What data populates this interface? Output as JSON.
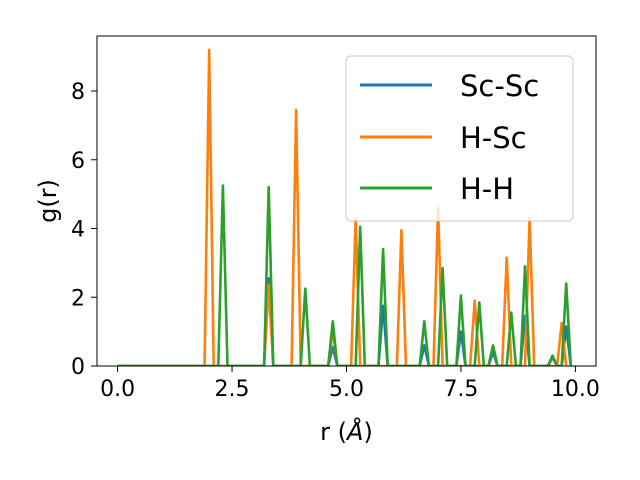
{
  "chart_data": {
    "type": "line",
    "xlabel": "r (",
    "xlabel_unit": "Å",
    "xlabel_close": ")",
    "ylabel": "g(r)",
    "xlim": [
      -0.45,
      10.45
    ],
    "ylim": [
      0,
      9.6
    ],
    "xticks": [
      0.0,
      2.5,
      5.0,
      7.5,
      10.0
    ],
    "xtick_labels": [
      "0.0",
      "2.5",
      "5.0",
      "7.5",
      "10.0"
    ],
    "yticks": [
      0,
      2,
      4,
      6,
      8
    ],
    "ytick_labels": [
      "0",
      "2",
      "4",
      "6",
      "8"
    ],
    "legend_position": "upper-right",
    "grid": false,
    "series": [
      {
        "name": "Sc-Sc",
        "color": "#1f77b4",
        "points": [
          [
            0,
            0
          ],
          [
            3.2,
            0
          ],
          [
            3.3,
            2.55
          ],
          [
            3.4,
            0
          ],
          [
            4.6,
            0
          ],
          [
            4.7,
            0.55
          ],
          [
            4.8,
            0
          ],
          [
            5.7,
            0
          ],
          [
            5.8,
            1.75
          ],
          [
            5.9,
            0
          ],
          [
            6.6,
            0
          ],
          [
            6.7,
            0.6
          ],
          [
            6.8,
            0
          ],
          [
            7.4,
            0
          ],
          [
            7.5,
            1.0
          ],
          [
            7.6,
            0
          ],
          [
            8.1,
            0
          ],
          [
            8.2,
            0.4
          ],
          [
            8.3,
            0
          ],
          [
            8.8,
            0
          ],
          [
            8.9,
            1.45
          ],
          [
            9.0,
            0
          ],
          [
            9.4,
            0
          ],
          [
            9.5,
            0.25
          ],
          [
            9.6,
            0
          ],
          [
            9.7,
            0
          ],
          [
            9.8,
            1.15
          ],
          [
            9.9,
            0
          ]
        ]
      },
      {
        "name": "H-Sc",
        "color": "#ff7f0e",
        "points": [
          [
            0,
            0
          ],
          [
            1.9,
            0
          ],
          [
            2.0,
            9.2
          ],
          [
            2.1,
            0
          ],
          [
            3.2,
            0
          ],
          [
            3.3,
            2.35
          ],
          [
            3.4,
            0
          ],
          [
            3.8,
            0
          ],
          [
            3.9,
            7.45
          ],
          [
            4.0,
            0
          ],
          [
            4.6,
            0
          ],
          [
            4.7,
            1.05
          ],
          [
            4.8,
            0
          ],
          [
            5.1,
            0
          ],
          [
            5.2,
            4.3
          ],
          [
            5.3,
            0
          ],
          [
            6.1,
            0
          ],
          [
            6.2,
            3.95
          ],
          [
            6.3,
            0
          ],
          [
            6.9,
            0
          ],
          [
            7.0,
            4.65
          ],
          [
            7.1,
            0
          ],
          [
            7.7,
            0
          ],
          [
            7.8,
            1.9
          ],
          [
            7.9,
            0
          ],
          [
            8.4,
            0
          ],
          [
            8.5,
            3.15
          ],
          [
            8.6,
            0
          ],
          [
            8.9,
            0
          ],
          [
            9.0,
            4.3
          ],
          [
            9.1,
            0
          ],
          [
            9.6,
            0
          ],
          [
            9.7,
            1.25
          ],
          [
            9.8,
            0
          ]
        ]
      },
      {
        "name": "H-H",
        "color": "#2ca02c",
        "points": [
          [
            0,
            0
          ],
          [
            2.2,
            0
          ],
          [
            2.3,
            5.25
          ],
          [
            2.4,
            0
          ],
          [
            3.2,
            0
          ],
          [
            3.3,
            5.2
          ],
          [
            3.4,
            0
          ],
          [
            4.0,
            0
          ],
          [
            4.1,
            2.25
          ],
          [
            4.2,
            0
          ],
          [
            4.6,
            0
          ],
          [
            4.7,
            1.3
          ],
          [
            4.8,
            0
          ],
          [
            5.2,
            0
          ],
          [
            5.3,
            4.05
          ],
          [
            5.4,
            0
          ],
          [
            5.7,
            0
          ],
          [
            5.8,
            3.4
          ],
          [
            5.9,
            0
          ],
          [
            6.6,
            0
          ],
          [
            6.7,
            1.3
          ],
          [
            6.8,
            0
          ],
          [
            7.0,
            0
          ],
          [
            7.1,
            2.85
          ],
          [
            7.2,
            0
          ],
          [
            7.4,
            0
          ],
          [
            7.5,
            2.05
          ],
          [
            7.6,
            0
          ],
          [
            7.8,
            0
          ],
          [
            7.9,
            1.85
          ],
          [
            8.0,
            0
          ],
          [
            8.1,
            0
          ],
          [
            8.2,
            0.6
          ],
          [
            8.3,
            0
          ],
          [
            8.5,
            0
          ],
          [
            8.6,
            1.55
          ],
          [
            8.7,
            0
          ],
          [
            8.8,
            0
          ],
          [
            8.9,
            2.9
          ],
          [
            9.0,
            0
          ],
          [
            9.4,
            0
          ],
          [
            9.5,
            0.3
          ],
          [
            9.6,
            0
          ],
          [
            9.7,
            0
          ],
          [
            9.8,
            2.4
          ],
          [
            9.9,
            0
          ]
        ]
      }
    ]
  }
}
